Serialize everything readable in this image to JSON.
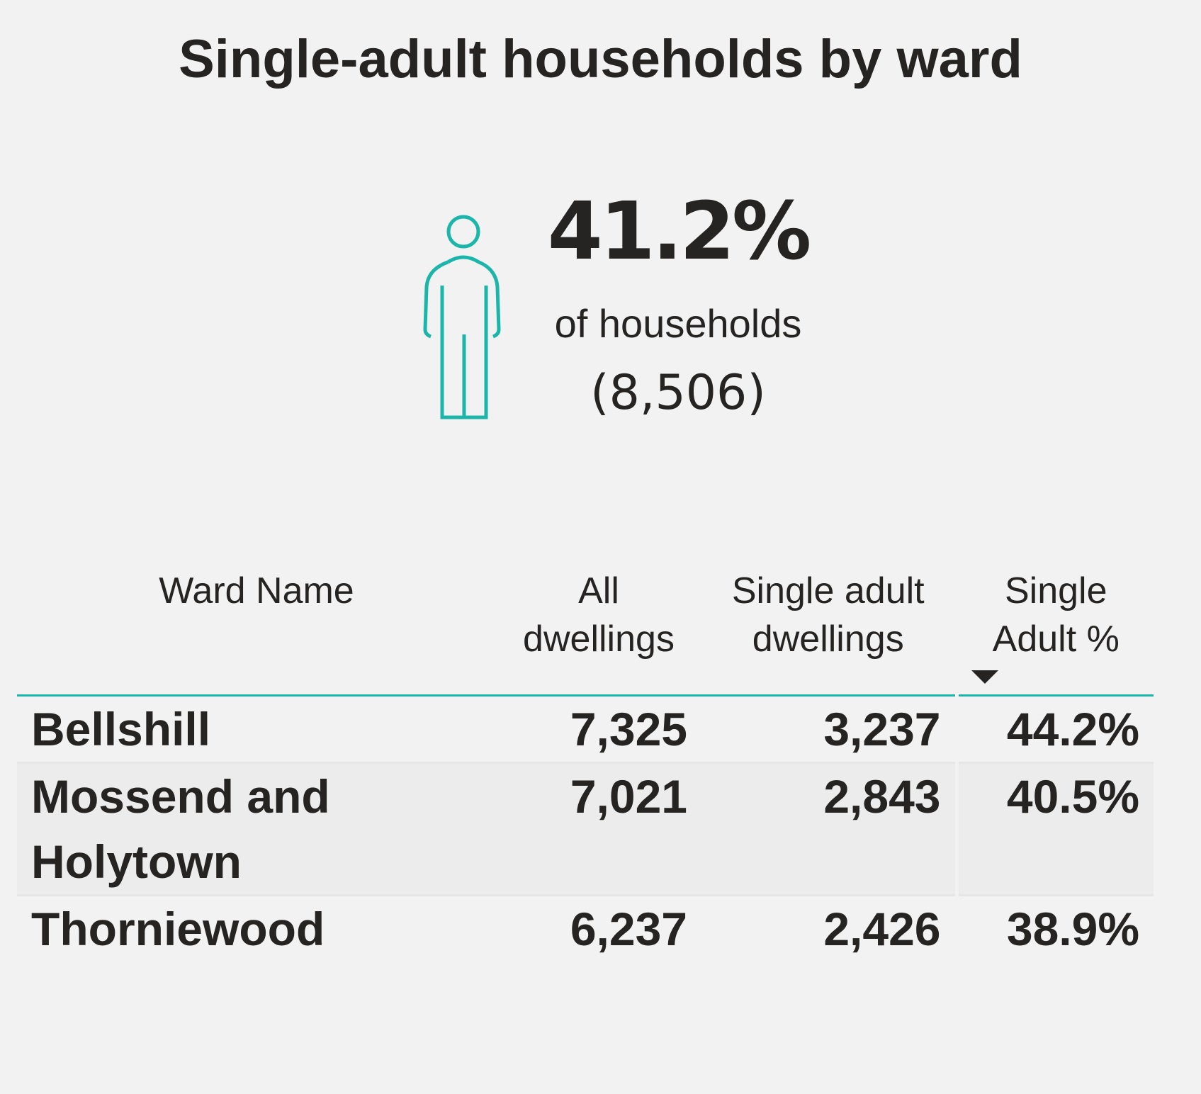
{
  "title": "Single-adult households by ward",
  "kpi": {
    "value": "41.2%",
    "caption": "of households",
    "count": "(8,506)"
  },
  "table": {
    "headers": [
      "Ward Name",
      "All dwellings",
      "Single adult dwellings",
      "Single Adult %"
    ],
    "rows": [
      [
        "Bellshill",
        "7,325",
        "3,237",
        "44.2%"
      ],
      [
        "Mossend and Holytown",
        "7,021",
        "2,843",
        "40.5%"
      ],
      [
        "Thorniewood",
        "6,237",
        "2,426",
        "38.9%"
      ]
    ]
  }
}
